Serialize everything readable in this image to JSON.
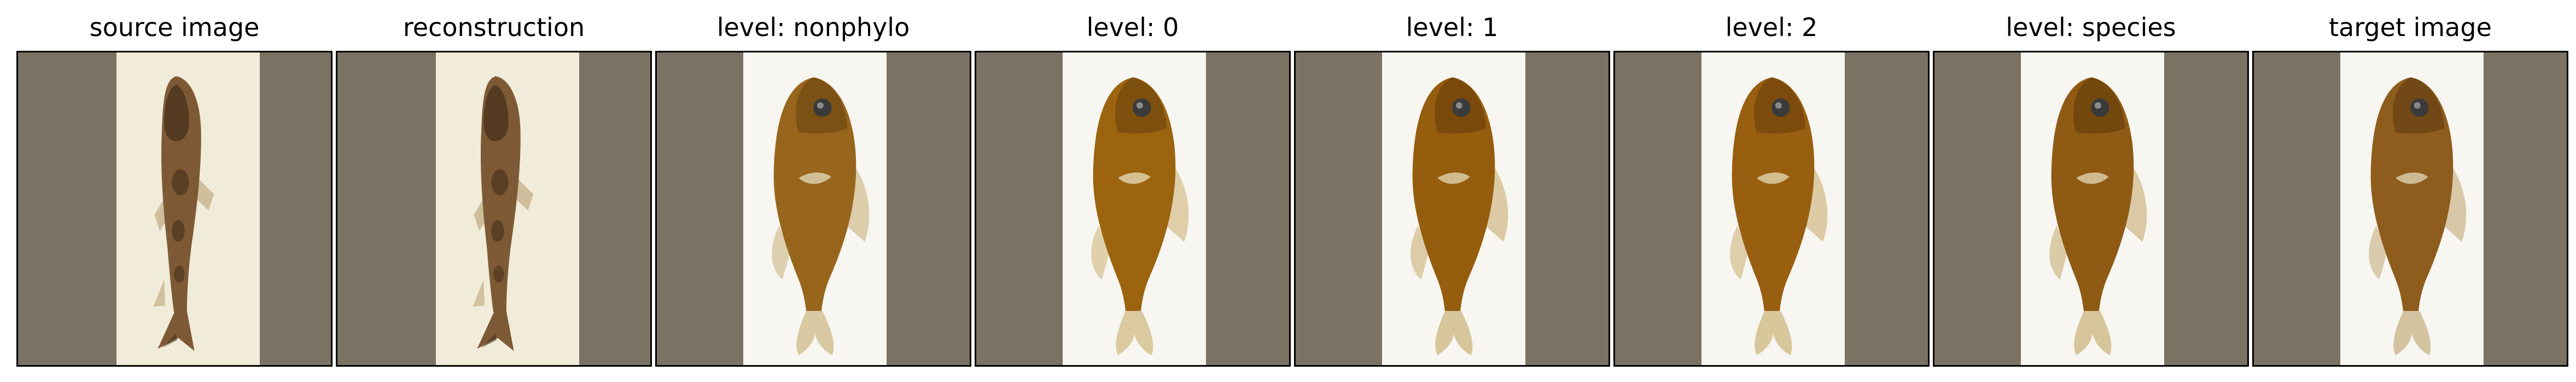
{
  "figure": {
    "background_color": "#ffffff",
    "frame_color": "#7a7263",
    "panels": [
      {
        "title": "source image",
        "style": "loach",
        "backdrop": "#f1ecd9",
        "fish_color": "#7d5a35",
        "fish_dark": "#3f2a17",
        "fin_color": "#c9b690"
      },
      {
        "title": "reconstruction",
        "style": "loach",
        "backdrop": "#f1ecd9",
        "fish_color": "#7d5a35",
        "fish_dark": "#3f2a17",
        "fin_color": "#c9b690"
      },
      {
        "title": "level: nonphylo",
        "style": "sunfish",
        "backdrop": "#f7f6f1",
        "fish_color": "#98651d",
        "fish_dark": "#5a3a0e",
        "fin_color": "#d8c9a3"
      },
      {
        "title": "level: 0",
        "style": "sunfish",
        "backdrop": "#f7f6f1",
        "fish_color": "#9c640f",
        "fish_dark": "#5c380a",
        "fin_color": "#dbcaa0"
      },
      {
        "title": "level: 1",
        "style": "sunfish",
        "backdrop": "#f7f6f1",
        "fish_color": "#955d0d",
        "fish_dark": "#573409",
        "fin_color": "#d7c59b"
      },
      {
        "title": "level: 2",
        "style": "sunfish",
        "backdrop": "#f7f6f1",
        "fish_color": "#995f10",
        "fish_dark": "#5a360a",
        "fin_color": "#d9c79c"
      },
      {
        "title": "level: species",
        "style": "sunfish",
        "backdrop": "#f7f6f1",
        "fish_color": "#8f5a13",
        "fish_dark": "#53330b",
        "fin_color": "#d6c49b"
      },
      {
        "title": "target image",
        "style": "sunfish",
        "backdrop": "#f7f6f1",
        "fish_color": "#8e5c1c",
        "fish_dark": "#4f3410",
        "fin_color": "#d4c3a0"
      }
    ]
  }
}
